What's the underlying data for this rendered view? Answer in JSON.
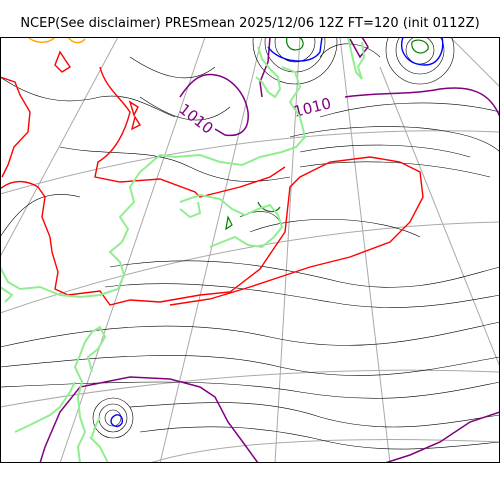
{
  "title": "NCEP(See disclaimer) PRESmean 2025/12/06 12Z FT=120 (init 0112Z)",
  "map": {
    "isobar_labels": [
      "1010",
      "1010"
    ],
    "colors": {
      "isobar": "#000000",
      "contour_1010": "#800080",
      "contour_red": "#ff0000",
      "contour_blue": "#0000ff",
      "contour_green": "#008000",
      "contour_orange": "#ffa500",
      "coastline": "#90ee90",
      "graticule": "#a9a9a9",
      "border": "#000000"
    }
  }
}
